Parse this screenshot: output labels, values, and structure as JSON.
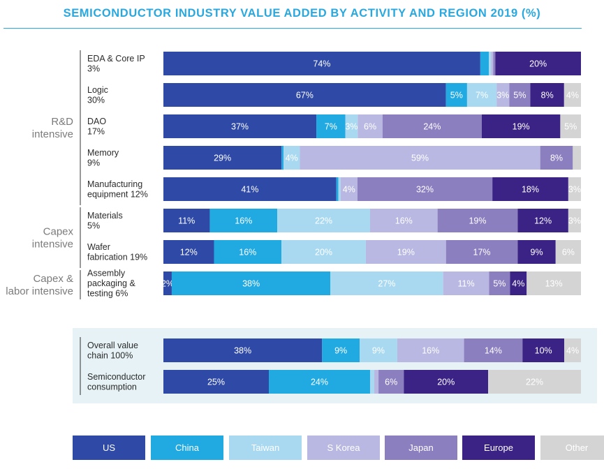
{
  "chart_data": {
    "type": "bar",
    "orientation": "horizontal",
    "stacked": true,
    "normalized": true,
    "title": "SEMICONDUCTOR INDUSTRY VALUE ADDED BY ACTIVITY AND REGION 2019 (%)",
    "legend_position": "bottom",
    "groups": [
      {
        "label": [
          "R&D",
          "intensive"
        ],
        "rows": [
          0,
          1,
          2,
          3,
          4
        ]
      },
      {
        "label": [
          "Capex",
          "intensive"
        ],
        "rows": [
          5,
          6
        ]
      },
      {
        "label": [
          "Capex &",
          "labor intensive"
        ],
        "rows": [
          7
        ]
      }
    ],
    "categories": [
      {
        "label": [
          "EDA & Core IP",
          "3%"
        ],
        "share": 3
      },
      {
        "label": [
          "Logic",
          "30%"
        ],
        "share": 30
      },
      {
        "label": [
          "DAO",
          "17%"
        ],
        "share": 17
      },
      {
        "label": [
          "Memory",
          "9%"
        ],
        "share": 9
      },
      {
        "label": [
          "Manufacturing",
          "equipment 12%"
        ],
        "share": 12
      },
      {
        "label": [
          "Materials",
          "5%"
        ],
        "share": 5
      },
      {
        "label": [
          "Wafer",
          "fabrication 19%"
        ],
        "share": 19
      },
      {
        "label": [
          "Assembly",
          "packaging &",
          "testing 6%"
        ],
        "share": 6
      },
      {
        "label": [
          "Overall value",
          "chain 100%"
        ],
        "share": 100
      },
      {
        "label": [
          "Semiconductor",
          "consumption"
        ]
      }
    ],
    "series": [
      {
        "name": "US",
        "color": "#2f4aa6",
        "values": [
          74,
          67,
          37,
          29,
          41,
          11,
          12,
          2,
          38,
          25
        ],
        "labels": [
          "74%",
          "67%",
          "37%",
          "29%",
          "41%",
          "11%",
          "12%",
          "2%",
          "38%",
          "25%"
        ]
      },
      {
        "name": "China",
        "color": "#21a9e1",
        "values": [
          2,
          5,
          7,
          0.5,
          0.5,
          16,
          16,
          38,
          9,
          24
        ],
        "labels": [
          "",
          "5%",
          "7%",
          "",
          "",
          "16%",
          "16%",
          "38%",
          "9%",
          "24%"
        ]
      },
      {
        "name": "Taiwan",
        "color": "#a9d9f1",
        "values": [
          0.5,
          7,
          3,
          4,
          0.5,
          22,
          20,
          27,
          9,
          1
        ],
        "labels": [
          "",
          "7%",
          "3%",
          "4%",
          "",
          "22%",
          "20%",
          "27%",
          "9%",
          ""
        ]
      },
      {
        "name": "S Korea",
        "color": "#b9b8e2",
        "values": [
          0.5,
          3,
          6,
          59,
          4,
          16,
          19,
          11,
          16,
          1
        ],
        "labels": [
          "",
          "3%",
          "6%",
          "59%",
          "4%",
          "16%",
          "19%",
          "11%",
          "16%",
          ""
        ]
      },
      {
        "name": "Japan",
        "color": "#8c7fc0",
        "values": [
          0.5,
          5,
          24,
          8,
          32,
          19,
          17,
          5,
          14,
          6
        ],
        "labels": [
          "",
          "5%",
          "24%",
          "8%",
          "32%",
          "19%",
          "17%",
          "5%",
          "14%",
          "6%"
        ]
      },
      {
        "name": "Europe",
        "color": "#3b2386",
        "values": [
          20,
          8,
          19,
          0,
          18,
          12,
          9,
          4,
          10,
          20
        ],
        "labels": [
          "20%",
          "8%",
          "19%",
          "",
          "18%",
          "12%",
          "9%",
          "4%",
          "10%",
          "20%"
        ]
      },
      {
        "name": "Other",
        "color": "#d4d4d4",
        "values": [
          0,
          4,
          5,
          2,
          3,
          3,
          6,
          13,
          4,
          22
        ],
        "labels": [
          "",
          "4%",
          "5%",
          "",
          "3%",
          "3%",
          "6%",
          "13%",
          "4%",
          "22%"
        ]
      }
    ]
  }
}
